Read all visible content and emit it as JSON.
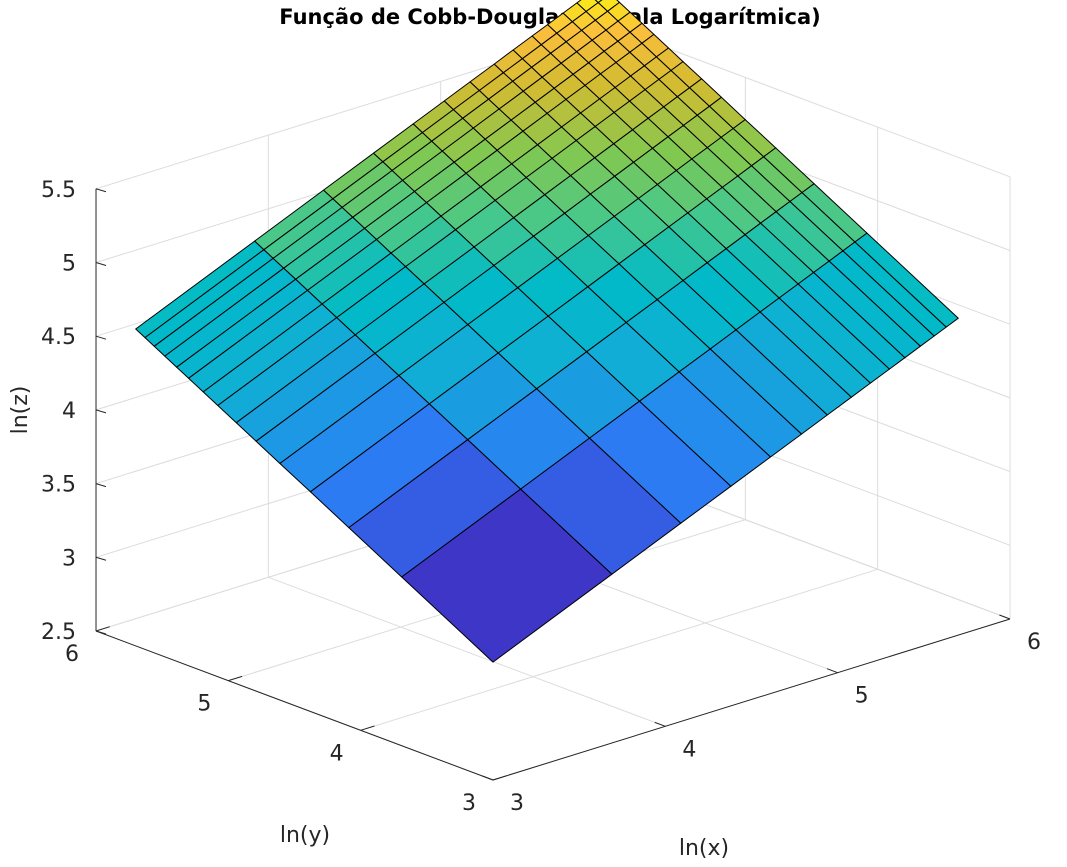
{
  "chart_data": {
    "type": "surface",
    "title": "Função de Cobb-Douglas (Escala Logarítmica)",
    "xlabel": "ln(x)",
    "ylabel": "ln(y)",
    "zlabel": "ln(z)",
    "xlim": [
      3,
      6
    ],
    "ylim": [
      3,
      6
    ],
    "zlim": [
      2.5,
      5.5
    ],
    "xticks": [
      "3",
      "4",
      "5",
      "6"
    ],
    "yticks": [
      "3",
      "4",
      "5",
      "6"
    ],
    "zticks": [
      "2.5",
      "3",
      "3.5",
      "4",
      "4.5",
      "5",
      "5.5"
    ],
    "grid": true,
    "colormap": "parula",
    "x": [
      3.0,
      3.69,
      4.09,
      4.38,
      4.61,
      4.79,
      4.94,
      5.08,
      5.19,
      5.3,
      5.39,
      5.48,
      5.56,
      5.63,
      5.7
    ],
    "y": [
      3.0,
      3.69,
      4.09,
      4.38,
      4.61,
      4.79,
      4.94,
      5.08,
      5.19,
      5.3,
      5.39,
      5.48,
      5.56,
      5.63,
      5.7
    ],
    "z_formula": "ln(z) = 0.5·ln(x) + 0.5·ln(y) + 0.3",
    "surface_min": 3.3,
    "surface_max": 6.0
  }
}
